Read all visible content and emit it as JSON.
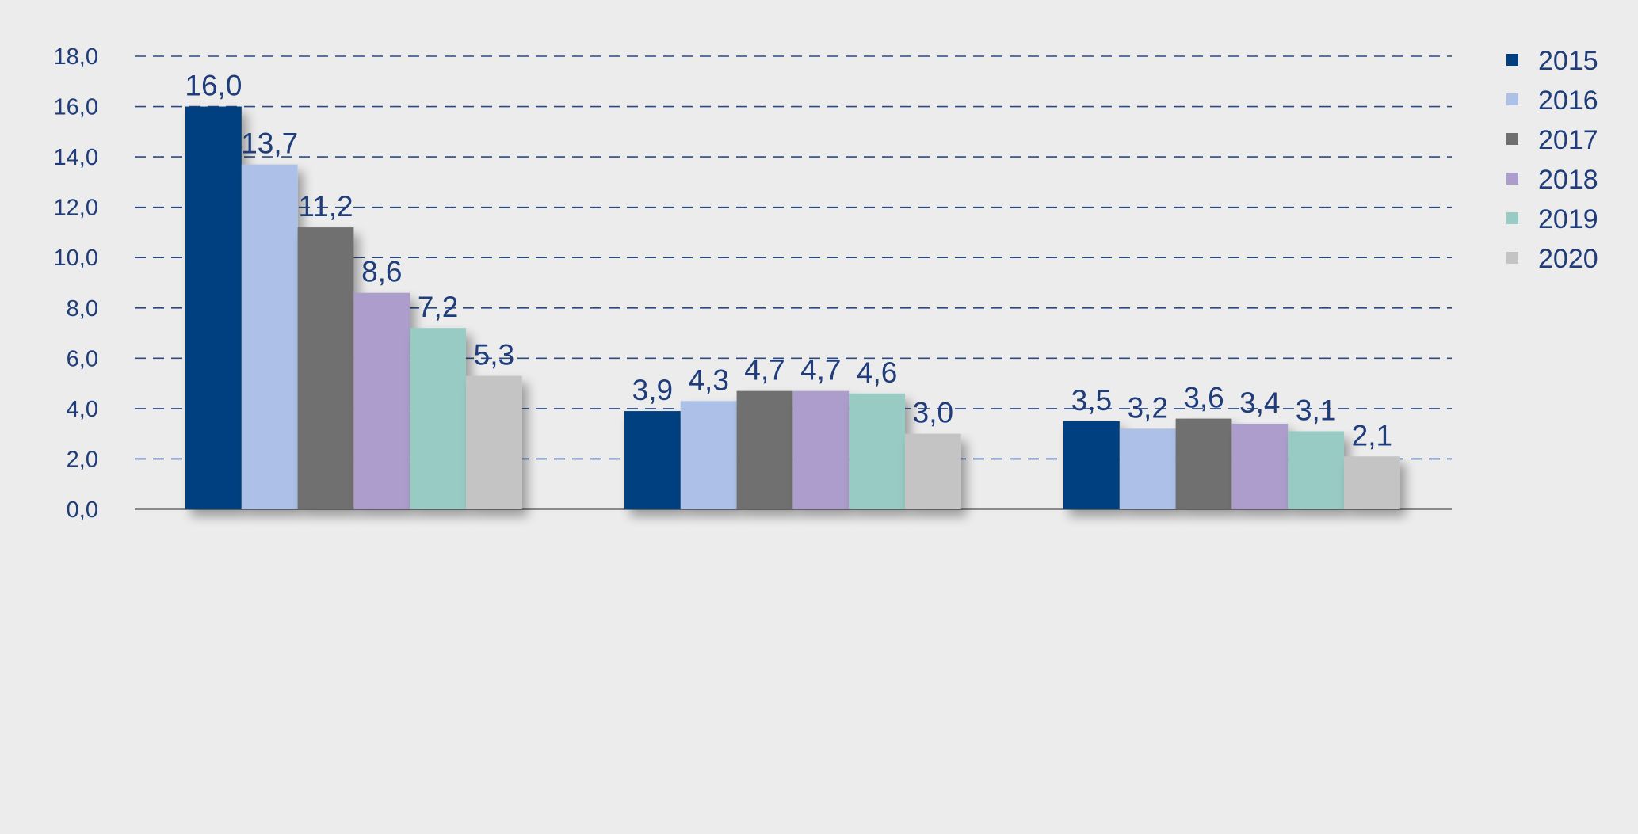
{
  "chart_data": {
    "type": "bar",
    "title": "",
    "xlabel": "",
    "ylabel": "",
    "ylim": [
      0,
      18
    ],
    "yticks": [
      "0,0",
      "2,0",
      "4,0",
      "6,0",
      "8,0",
      "10,0",
      "12,0",
      "14,0",
      "16,0",
      "18,0"
    ],
    "grid": true,
    "legend_position": "top-right",
    "categories": [
      "",
      "",
      ""
    ],
    "series": [
      {
        "name": "2015",
        "color": "#003f80",
        "values": [
          16.0,
          3.9,
          3.5
        ],
        "labels": [
          "16,0",
          "3,9",
          "3,5"
        ]
      },
      {
        "name": "2016",
        "color": "#adc1e8",
        "values": [
          13.7,
          4.3,
          3.2
        ],
        "labels": [
          "13,7",
          "4,3",
          "3,2"
        ]
      },
      {
        "name": "2017",
        "color": "#6f6f6f",
        "values": [
          11.2,
          4.7,
          3.6
        ],
        "labels": [
          "11,2",
          "4,7",
          "3,6"
        ]
      },
      {
        "name": "2018",
        "color": "#ad9dcd",
        "values": [
          8.6,
          4.7,
          3.4
        ],
        "labels": [
          "8,6",
          "4,7",
          "3,4"
        ]
      },
      {
        "name": "2019",
        "color": "#98cbc4",
        "values": [
          7.2,
          4.6,
          3.1
        ],
        "labels": [
          "7,2",
          "4,6",
          "3,1"
        ]
      },
      {
        "name": "2020",
        "color": "#c4c4c4",
        "values": [
          5.3,
          3.0,
          2.1
        ],
        "labels": [
          "5,3",
          "3,0",
          "2,1"
        ]
      }
    ]
  }
}
